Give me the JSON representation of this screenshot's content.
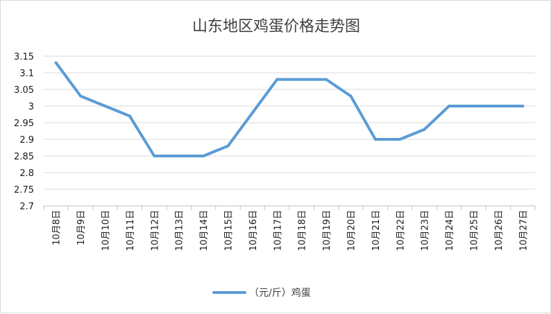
{
  "chart_data": {
    "type": "line",
    "title": "山东地区鸡蛋价格走势图",
    "xlabel": "",
    "ylabel": "",
    "categories": [
      "10月8日",
      "10月9日",
      "10月10日",
      "10月11日",
      "10月12日",
      "10月13日",
      "10月14日",
      "10月15日",
      "10月16日",
      "10月17日",
      "10月18日",
      "10月19日",
      "10月20日",
      "10月21日",
      "10月22日",
      "10月23日",
      "10月24日",
      "10月25日",
      "10月26日",
      "10月27日"
    ],
    "series": [
      {
        "name": "（元/斤）鸡蛋",
        "color": "#5b9bd5",
        "values": [
          3.13,
          3.03,
          3.0,
          2.97,
          2.85,
          2.85,
          2.85,
          2.88,
          2.98,
          3.08,
          3.08,
          3.08,
          3.03,
          2.9,
          2.9,
          2.93,
          3.0,
          3.0,
          3.0,
          3.0
        ]
      }
    ],
    "ylim": [
      2.7,
      3.15
    ],
    "yticks": [
      "2.7",
      "2.75",
      "2.8",
      "2.85",
      "2.9",
      "2.95",
      "3",
      "3.05",
      "3.1",
      "3.15"
    ],
    "grid": true,
    "legend": "bottom"
  }
}
